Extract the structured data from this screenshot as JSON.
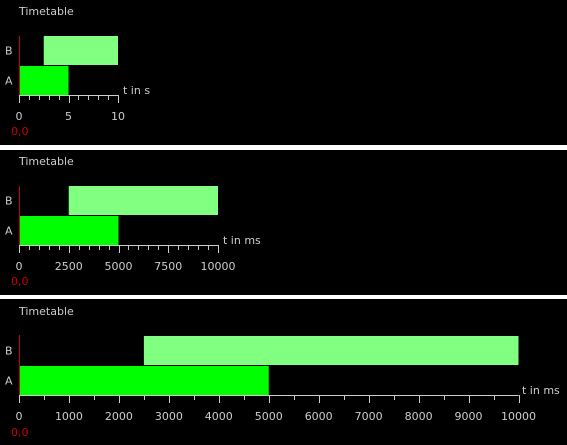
{
  "colors": {
    "background": "#000000",
    "text": "#cccccc",
    "axis_y": "#cc0000",
    "axis_x": "#cccccc",
    "origin": "#cc0000",
    "series_A": "#00ff00",
    "series_B": "#80ff80"
  },
  "chart_data": [
    {
      "type": "bar",
      "orientation": "horizontal-gantt",
      "title": "Timetable",
      "categories": [
        "A",
        "B"
      ],
      "series": [
        {
          "category": "A",
          "start": 0,
          "end": 5
        },
        {
          "category": "B",
          "start": 2.5,
          "end": 10
        }
      ],
      "xlabel": "t in s",
      "xlim": [
        0,
        10
      ],
      "major_ticks": [
        0,
        5,
        10
      ],
      "minor_step": 1,
      "origin_label": "0,0"
    },
    {
      "type": "bar",
      "orientation": "horizontal-gantt",
      "title": "Timetable",
      "categories": [
        "A",
        "B"
      ],
      "series": [
        {
          "category": "A",
          "start": 0,
          "end": 5000
        },
        {
          "category": "B",
          "start": 2500,
          "end": 10000
        }
      ],
      "xlabel": "t in ms",
      "xlim": [
        0,
        10000
      ],
      "major_ticks": [
        0,
        2500,
        5000,
        7500,
        10000
      ],
      "minor_step": 500,
      "origin_label": "0,0"
    },
    {
      "type": "bar",
      "orientation": "horizontal-gantt",
      "title": "Timetable",
      "categories": [
        "A",
        "B"
      ],
      "series": [
        {
          "category": "A",
          "start": 0,
          "end": 5000
        },
        {
          "category": "B",
          "start": 2500,
          "end": 10000
        }
      ],
      "xlabel": "t in ms",
      "xlim": [
        0,
        10000
      ],
      "major_ticks": [
        0,
        1000,
        2000,
        3000,
        4000,
        5000,
        6000,
        7000,
        8000,
        9000,
        10000
      ],
      "minor_step": 500,
      "origin_label": "0,0"
    }
  ]
}
